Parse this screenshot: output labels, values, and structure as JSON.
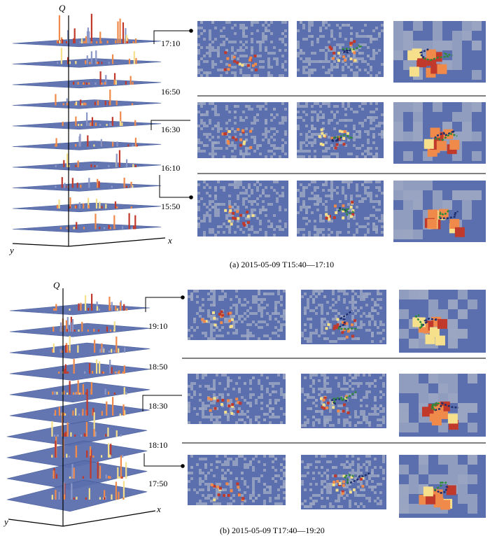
{
  "panel_a": {
    "caption": "(a) 2015-05-09 T15:40—17:10",
    "axis_q": "Q",
    "axis_x": "x",
    "axis_y": "y",
    "time_labels": [
      "17:10",
      "16:50",
      "16:30",
      "16:10",
      "15:50"
    ]
  },
  "panel_b": {
    "caption": "(b) 2015-05-09 T17:40—19:20",
    "axis_q": "Q",
    "axis_x": "x",
    "axis_y": "y",
    "time_labels": [
      "19:10",
      "18:50",
      "18:30",
      "18:10",
      "17:50"
    ]
  },
  "colors": {
    "surface": "#5b6fae",
    "surface_dark": "#3f5596",
    "grey_cell": "#9aa6c2",
    "peak_red": "#c0392b",
    "peak_orange": "#f08a4b",
    "peak_yellow": "#f6e08c"
  }
}
